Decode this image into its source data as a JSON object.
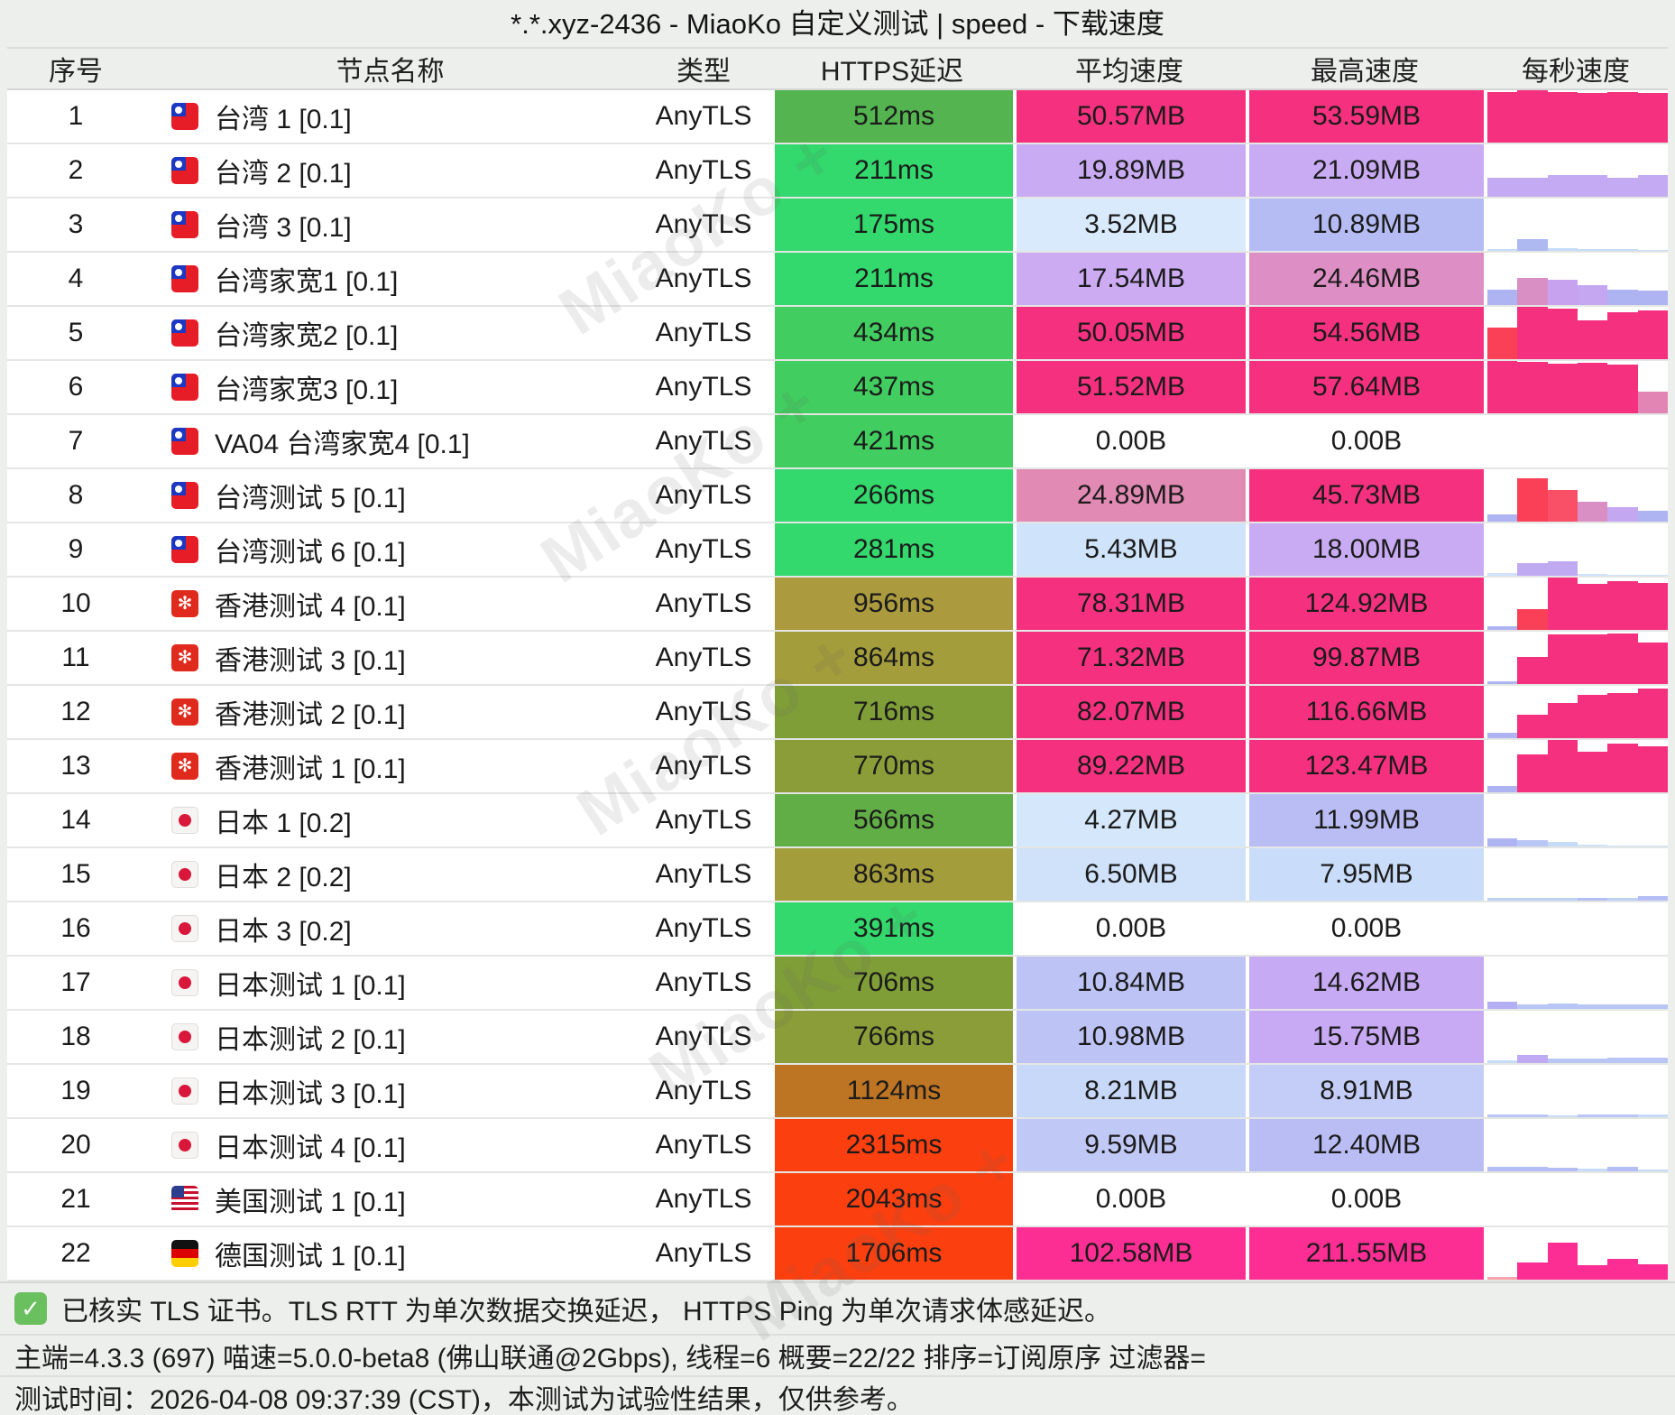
{
  "title": "*.*.xyz-2436 - MiaoKo 自定义测试 | speed - 下载速度",
  "watermark": "MiaoKo +",
  "columns": [
    "序号",
    "节点名称",
    "类型",
    "HTTPS延迟",
    "平均速度",
    "最高速度",
    "每秒速度"
  ],
  "rows": [
    {
      "index": "1",
      "flag": "tw",
      "name": "台湾 1 [0.1]",
      "type": "AnyTLS",
      "latency": "512ms",
      "latency_bg": "#54b450",
      "avg": "50.57MB",
      "avg_bg": "#f5317f",
      "max": "53.59MB",
      "max_bg": "#f5317f",
      "spark": [
        [
          0.97,
          "#f5317f"
        ],
        [
          1.0,
          "#f5317f"
        ],
        [
          0.96,
          "#f5317f"
        ],
        [
          0.94,
          "#f5317f"
        ],
        [
          0.97,
          "#f5317f"
        ],
        [
          0.95,
          "#f5317f"
        ]
      ]
    },
    {
      "index": "2",
      "flag": "tw",
      "name": "台湾 2 [0.1]",
      "type": "AnyTLS",
      "latency": "211ms",
      "latency_bg": "#33d96c",
      "avg": "19.89MB",
      "avg_bg": "#c9abf3",
      "max": "21.09MB",
      "max_bg": "#c9abf3",
      "spark": [
        [
          0.36,
          "#c4aaf2"
        ],
        [
          0.37,
          "#c4aaf2"
        ],
        [
          0.41,
          "#c4aaf2"
        ],
        [
          0.41,
          "#c4aaf2"
        ],
        [
          0.37,
          "#c4aaf2"
        ],
        [
          0.41,
          "#c4aaf2"
        ]
      ]
    },
    {
      "index": "3",
      "flag": "tw",
      "name": "台湾 3 [0.1]",
      "type": "AnyTLS",
      "latency": "175ms",
      "latency_bg": "#33d96c",
      "avg": "3.52MB",
      "avg_bg": "#d9eafc",
      "max": "10.89MB",
      "max_bg": "#b5bcf4",
      "spark": [
        [
          0.04,
          "#c6dbf8"
        ],
        [
          0.23,
          "#aeb9f2"
        ],
        [
          0.05,
          "#c6dbf8"
        ],
        [
          0.04,
          "#c6dbf8"
        ],
        [
          0.03,
          "#c6dbf8"
        ],
        [
          0.02,
          "#c6dbf8"
        ]
      ]
    },
    {
      "index": "4",
      "flag": "tw",
      "name": "台湾家宽1 [0.1]",
      "type": "AnyTLS",
      "latency": "211ms",
      "latency_bg": "#33d96c",
      "avg": "17.54MB",
      "avg_bg": "#ccabf3",
      "max": "24.46MB",
      "max_bg": "#dd8ec4",
      "spark": [
        [
          0.3,
          "#aeb4f2"
        ],
        [
          0.52,
          "#d98fc3"
        ],
        [
          0.48,
          "#c7a2ee"
        ],
        [
          0.38,
          "#c4a7f0"
        ],
        [
          0.3,
          "#aeb4f2"
        ],
        [
          0.28,
          "#aeb4f2"
        ]
      ]
    },
    {
      "index": "5",
      "flag": "tw",
      "name": "台湾家宽2 [0.1]",
      "type": "AnyTLS",
      "latency": "434ms",
      "latency_bg": "#41cd5f",
      "avg": "50.05MB",
      "avg_bg": "#f5317f",
      "max": "54.56MB",
      "max_bg": "#f5317f",
      "spark": [
        [
          0.6,
          "#f94057"
        ],
        [
          1.0,
          "#f5317f"
        ],
        [
          0.97,
          "#f5317f"
        ],
        [
          0.75,
          "#f5317f"
        ],
        [
          0.9,
          "#f5317f"
        ],
        [
          0.93,
          "#f5317f"
        ]
      ]
    },
    {
      "index": "6",
      "flag": "tw",
      "name": "台湾家宽3 [0.1]",
      "type": "AnyTLS",
      "latency": "437ms",
      "latency_bg": "#41cd5f",
      "avg": "51.52MB",
      "avg_bg": "#f5317f",
      "max": "57.64MB",
      "max_bg": "#f5317f",
      "spark": [
        [
          1.0,
          "#f5317f"
        ],
        [
          0.98,
          "#f5317f"
        ],
        [
          0.95,
          "#f5317f"
        ],
        [
          0.97,
          "#f5317f"
        ],
        [
          0.93,
          "#f5317f"
        ],
        [
          0.42,
          "#e285b5"
        ]
      ]
    },
    {
      "index": "7",
      "flag": "tw",
      "name": "VA04 台湾家宽4 [0.1]",
      "type": "AnyTLS",
      "latency": "421ms",
      "latency_bg": "#41cd5f",
      "avg": "0.00B",
      "avg_bg": "",
      "max": "0.00B",
      "max_bg": "",
      "spark": []
    },
    {
      "index": "8",
      "flag": "tw",
      "name": "台湾测试 5 [0.1]",
      "type": "AnyTLS",
      "latency": "266ms",
      "latency_bg": "#33d96c",
      "avg": "24.89MB",
      "avg_bg": "#e18ab4",
      "max": "45.73MB",
      "max_bg": "#f5317f",
      "spark": [
        [
          0.14,
          "#aeb4f2"
        ],
        [
          0.82,
          "#f94057"
        ],
        [
          0.6,
          "#f95068"
        ],
        [
          0.38,
          "#d98fc3"
        ],
        [
          0.28,
          "#c3a7f1"
        ],
        [
          0.2,
          "#aeb4f2"
        ]
      ]
    },
    {
      "index": "9",
      "flag": "tw",
      "name": "台湾测试 6 [0.1]",
      "type": "AnyTLS",
      "latency": "281ms",
      "latency_bg": "#33d96c",
      "avg": "5.43MB",
      "avg_bg": "#cfe3fa",
      "max": "18.00MB",
      "max_bg": "#c9abf3",
      "spark": [
        [
          0.05,
          "#cfe2fa"
        ],
        [
          0.24,
          "#bfaaf2"
        ],
        [
          0.28,
          "#bfaaf2"
        ],
        [
          0.03,
          "#cfe2fa"
        ],
        [
          0.02,
          "#cfe2fa"
        ],
        [
          0.02,
          "#cfe2fa"
        ]
      ]
    },
    {
      "index": "10",
      "flag": "hk",
      "name": "香港测试 4 [0.1]",
      "type": "AnyTLS",
      "latency": "956ms",
      "latency_bg": "#ab9a3e",
      "avg": "78.31MB",
      "avg_bg": "#f5317f",
      "max": "124.92MB",
      "max_bg": "#f5317f",
      "spark": [
        [
          0.07,
          "#aeb4f2"
        ],
        [
          0.4,
          "#f94057"
        ],
        [
          1.0,
          "#f5317f"
        ],
        [
          0.88,
          "#f5317f"
        ],
        [
          0.93,
          "#f5317f"
        ],
        [
          0.9,
          "#f5317f"
        ]
      ]
    },
    {
      "index": "11",
      "flag": "hk",
      "name": "香港测试 3 [0.1]",
      "type": "AnyTLS",
      "latency": "864ms",
      "latency_bg": "#a39d3b",
      "avg": "71.32MB",
      "avg_bg": "#f5317f",
      "max": "99.87MB",
      "max_bg": "#f5317f",
      "spark": [
        [
          0.06,
          "#aeb4f2"
        ],
        [
          0.52,
          "#f5317f"
        ],
        [
          0.95,
          "#f5317f"
        ],
        [
          0.94,
          "#f5317f"
        ],
        [
          0.97,
          "#f5317f"
        ],
        [
          0.8,
          "#f5317f"
        ]
      ]
    },
    {
      "index": "12",
      "flag": "hk",
      "name": "香港测试 2 [0.1]",
      "type": "AnyTLS",
      "latency": "716ms",
      "latency_bg": "#7f9e37",
      "avg": "82.07MB",
      "avg_bg": "#f5317f",
      "max": "116.66MB",
      "max_bg": "#f5317f",
      "spark": [
        [
          0.1,
          "#aeb4f2"
        ],
        [
          0.45,
          "#f5317f"
        ],
        [
          0.68,
          "#f5317f"
        ],
        [
          0.82,
          "#f5317f"
        ],
        [
          0.87,
          "#f5317f"
        ],
        [
          0.95,
          "#f5317f"
        ]
      ]
    },
    {
      "index": "13",
      "flag": "hk",
      "name": "香港测试 1 [0.1]",
      "type": "AnyTLS",
      "latency": "770ms",
      "latency_bg": "#8a9d38",
      "avg": "89.22MB",
      "avg_bg": "#f5317f",
      "max": "123.47MB",
      "max_bg": "#f5317f",
      "spark": [
        [
          0.12,
          "#aeb4f2"
        ],
        [
          0.72,
          "#f5317f"
        ],
        [
          1.0,
          "#f5317f"
        ],
        [
          0.78,
          "#f5317f"
        ],
        [
          0.93,
          "#f5317f"
        ],
        [
          0.88,
          "#f5317f"
        ]
      ]
    },
    {
      "index": "14",
      "flag": "jp",
      "name": "日本 1 [0.2]",
      "type": "AnyTLS",
      "latency": "566ms",
      "latency_bg": "#62ae46",
      "avg": "4.27MB",
      "avg_bg": "#d5e8fb",
      "max": "11.99MB",
      "max_bg": "#b9bdf3",
      "spark": [
        [
          0.15,
          "#aeb4f2"
        ],
        [
          0.12,
          "#b9c6f5"
        ],
        [
          0.08,
          "#c6dbf8"
        ],
        [
          0.03,
          "#cfe2fa"
        ],
        [
          0.02,
          "#cfe2fa"
        ],
        [
          0.02,
          "#cfe2fa"
        ]
      ]
    },
    {
      "index": "15",
      "flag": "jp",
      "name": "日本 2 [0.2]",
      "type": "AnyTLS",
      "latency": "863ms",
      "latency_bg": "#a39d3b",
      "avg": "6.50MB",
      "avg_bg": "#cfe2fa",
      "max": "7.95MB",
      "max_bg": "#c9dcf9",
      "spark": [
        [
          0.05,
          "#bdd0f7"
        ],
        [
          0.05,
          "#bdd0f7"
        ],
        [
          0.05,
          "#bdd0f7"
        ],
        [
          0.06,
          "#b4bef4"
        ],
        [
          0.05,
          "#bdd0f7"
        ],
        [
          0.08,
          "#b4bef4"
        ]
      ]
    },
    {
      "index": "16",
      "flag": "jp",
      "name": "日本 3 [0.2]",
      "type": "AnyTLS",
      "latency": "391ms",
      "latency_bg": "#33d96c",
      "avg": "0.00B",
      "avg_bg": "",
      "max": "0.00B",
      "max_bg": "",
      "spark": []
    },
    {
      "index": "17",
      "flag": "jp",
      "name": "日本测试 1 [0.1]",
      "type": "AnyTLS",
      "latency": "706ms",
      "latency_bg": "#7f9e37",
      "avg": "10.84MB",
      "avg_bg": "#bdc4f5",
      "max": "14.62MB",
      "max_bg": "#c6aaf3",
      "spark": [
        [
          0.13,
          "#b4aef2"
        ],
        [
          0.09,
          "#b9c6f5"
        ],
        [
          0.1,
          "#b9c6f5"
        ],
        [
          0.09,
          "#b9c6f5"
        ],
        [
          0.08,
          "#b9c6f5"
        ],
        [
          0.08,
          "#b9c6f5"
        ]
      ]
    },
    {
      "index": "18",
      "flag": "jp",
      "name": "日本测试 2 [0.1]",
      "type": "AnyTLS",
      "latency": "766ms",
      "latency_bg": "#8a9d38",
      "avg": "10.98MB",
      "avg_bg": "#bdc4f5",
      "max": "15.75MB",
      "max_bg": "#c8a9f3",
      "spark": [
        [
          0.06,
          "#c6dbf8"
        ],
        [
          0.16,
          "#bfa9f2"
        ],
        [
          0.09,
          "#b9c6f5"
        ],
        [
          0.08,
          "#b9c6f5"
        ],
        [
          0.1,
          "#b9c6f5"
        ],
        [
          0.1,
          "#b9c6f5"
        ]
      ]
    },
    {
      "index": "19",
      "flag": "jp",
      "name": "日本测试 3 [0.1]",
      "type": "AnyTLS",
      "latency": "1124ms",
      "latency_bg": "#bd7423",
      "avg": "8.21MB",
      "avg_bg": "#c7d8f8",
      "max": "8.91MB",
      "max_bg": "#c3cdf7",
      "spark": [
        [
          0.06,
          "#b9c6f5"
        ],
        [
          0.06,
          "#b9c6f5"
        ],
        [
          0.04,
          "#c6dbf8"
        ],
        [
          0.06,
          "#b9c6f5"
        ],
        [
          0.06,
          "#b9c6f5"
        ],
        [
          0.05,
          "#c6dbf8"
        ]
      ]
    },
    {
      "index": "20",
      "flag": "jp",
      "name": "日本测试 4 [0.1]",
      "type": "AnyTLS",
      "latency": "2315ms",
      "latency_bg": "#fc3f0f",
      "avg": "9.59MB",
      "avg_bg": "#c0c9f6",
      "max": "12.40MB",
      "max_bg": "#b9bdf3",
      "spark": [
        [
          0.09,
          "#b4bef4"
        ],
        [
          0.08,
          "#b4bef4"
        ],
        [
          0.07,
          "#b4bef4"
        ],
        [
          0.05,
          "#c6dbf8"
        ],
        [
          0.09,
          "#b4bef4"
        ],
        [
          0.03,
          "#c6dbf8"
        ]
      ]
    },
    {
      "index": "21",
      "flag": "us",
      "name": "美国测试 1 [0.1]",
      "type": "AnyTLS",
      "latency": "2043ms",
      "latency_bg": "#fc3f0f",
      "avg": "0.00B",
      "avg_bg": "",
      "max": "0.00B",
      "max_bg": "",
      "spark": []
    },
    {
      "index": "22",
      "flag": "de",
      "name": "德国测试 1 [0.1]",
      "type": "AnyTLS",
      "latency": "1706ms",
      "latency_bg": "#fc3f0f",
      "avg": "102.58MB",
      "avg_bg": "#fd2e93",
      "max": "211.55MB",
      "max_bg": "#fd2e93",
      "spark": [
        [
          0.05,
          "#f8a3ab"
        ],
        [
          0.32,
          "#fd2e93"
        ],
        [
          0.7,
          "#fd2e93"
        ],
        [
          0.27,
          "#fd2e93"
        ],
        [
          0.4,
          "#fd2e93"
        ],
        [
          0.3,
          "#fd2e93"
        ]
      ]
    }
  ],
  "footer": {
    "check_icon": "✓",
    "line1": "已核实 TLS 证书。TLS RTT 为单次数据交换延迟， HTTPS Ping 为单次请求体感延迟。",
    "line2": "主端=4.3.3 (697) 喵速=5.0.0-beta8 (佛山联通@2Gbps), 线程=6 概要=22/22 排序=订阅原序 过滤器=",
    "line3": "测试时间：2026-04-08 09:37:39 (CST)，本测试为试验性结果，仅供参考。"
  },
  "hk_flower_glyph": "✻"
}
